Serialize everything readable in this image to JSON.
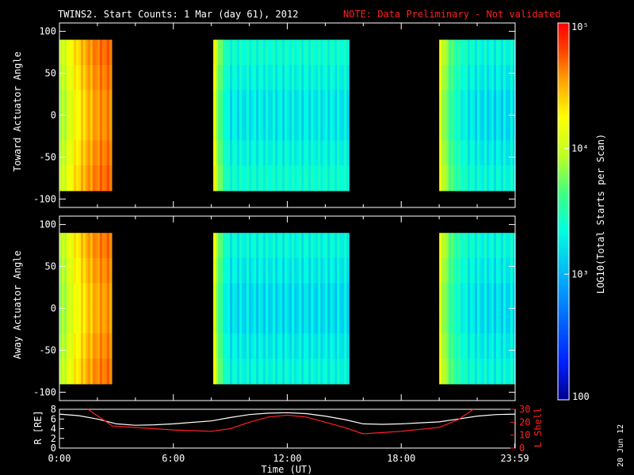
{
  "header": {
    "title": "TWINS2. Start Counts:  1 Mar (day  61), 2012",
    "note": "NOTE: Data Preliminary - Not validated"
  },
  "colorbar": {
    "label": "LOG10(Total Starts per Scan)",
    "ticks": [
      "100",
      "10³",
      "10⁴",
      "10⁵"
    ],
    "tick_values": [
      100,
      1000,
      10000,
      100000
    ],
    "colors": [
      "#00008b",
      "#0020ff",
      "#00a0ff",
      "#00ffe0",
      "#40ff80",
      "#c0ff20",
      "#ffff00",
      "#ffa000",
      "#ff4000",
      "#ff0000"
    ]
  },
  "date_stamp": "20 Jun 12",
  "chart_data": [
    {
      "type": "heatmap",
      "panel": "toward",
      "ylabel": "Toward Actuator Angle",
      "ylim": [
        -110,
        110
      ],
      "yticks": [
        -100,
        -50,
        0,
        50,
        100
      ],
      "xlim": [
        0,
        24
      ],
      "angle_range": [
        -90,
        90
      ],
      "segments": [
        {
          "start": 0.0,
          "end": 2.75,
          "level": 4.55,
          "profile": "rise"
        },
        {
          "start": 8.1,
          "end": 15.25,
          "level": 3.05,
          "profile": "flat"
        },
        {
          "start": 20.0,
          "end": 24.0,
          "level": 3.0,
          "profile": "fall"
        }
      ]
    },
    {
      "type": "heatmap",
      "panel": "away",
      "ylabel": "Away Actuator Angle",
      "ylim": [
        -110,
        110
      ],
      "yticks": [
        -100,
        -50,
        0,
        50,
        100
      ],
      "xlim": [
        0,
        24
      ],
      "angle_range": [
        -90,
        90
      ],
      "segments": [
        {
          "start": 0.0,
          "end": 2.75,
          "level": 4.5,
          "profile": "rise"
        },
        {
          "start": 8.1,
          "end": 15.25,
          "level": 3.0,
          "profile": "flat"
        },
        {
          "start": 20.0,
          "end": 24.0,
          "level": 3.0,
          "profile": "fall"
        }
      ]
    },
    {
      "type": "line",
      "panel": "orbit",
      "ylabel": "R [RE]",
      "y2label": "L Shell",
      "ylim": [
        0,
        8
      ],
      "yticks": [
        0,
        2,
        4,
        6,
        8
      ],
      "y2lim": [
        0,
        30
      ],
      "y2ticks": [
        0,
        10,
        20,
        30
      ],
      "xlim": [
        0,
        24
      ],
      "xlabel": "Time (UT)",
      "xticks": [
        "0:00",
        "6:00",
        "12:00",
        "18:00",
        "23:59"
      ],
      "xtick_values": [
        0,
        6,
        12,
        18,
        23.98
      ],
      "series": [
        {
          "axis": "left",
          "color": "#ffffff",
          "x": [
            0,
            1,
            2,
            3,
            4,
            5,
            6,
            7,
            8,
            9,
            10,
            11,
            12,
            13,
            14,
            15,
            16,
            17,
            18,
            19,
            20,
            21,
            22,
            23,
            24
          ],
          "y": [
            7.0,
            6.7,
            6.0,
            5.0,
            4.7,
            4.8,
            5.0,
            5.3,
            5.6,
            6.3,
            6.9,
            7.2,
            7.3,
            7.1,
            6.6,
            5.9,
            5.0,
            4.9,
            5.0,
            5.2,
            5.4,
            6.0,
            6.6,
            6.9,
            7.0
          ]
        },
        {
          "axis": "right",
          "color": "#ff2020",
          "x": [
            1.5,
            2.0,
            2.8,
            4,
            5,
            6,
            7,
            8,
            9,
            10,
            11,
            12,
            13,
            14,
            15,
            16,
            17,
            18,
            19,
            20,
            21,
            21.8
          ],
          "y": [
            30,
            25,
            17,
            16,
            15,
            14,
            13.5,
            13,
            15,
            20,
            24,
            25.5,
            24,
            20,
            16,
            11,
            12,
            13,
            14.5,
            16,
            22,
            30
          ]
        }
      ]
    }
  ]
}
